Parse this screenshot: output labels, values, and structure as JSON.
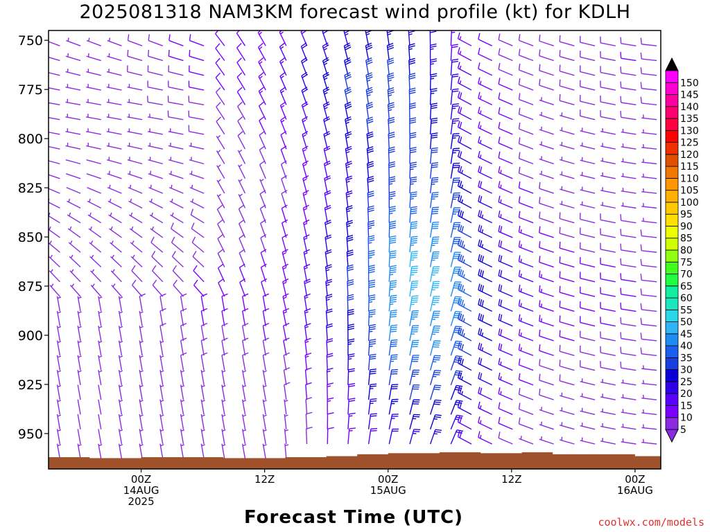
{
  "chart_data": {
    "type": "wind-barb time-height profile",
    "title": "2025081318 NAM3KM forecast wind profile (kt) for KDLH",
    "xlabel": "Forecast Time (UTC)",
    "ylabel": "",
    "y_axis": {
      "reversed": true,
      "range": [
        745,
        968
      ],
      "ticks": [
        750,
        775,
        800,
        825,
        850,
        875,
        900,
        925,
        950
      ]
    },
    "x_axis": {
      "range_hours": [
        -9,
        50.5
      ],
      "ticks": [
        {
          "hour": 0,
          "lines": [
            "00Z",
            "14AUG",
            "2025"
          ]
        },
        {
          "hour": 12,
          "lines": [
            "12Z"
          ]
        },
        {
          "hour": 24,
          "lines": [
            "00Z",
            "15AUG"
          ]
        },
        {
          "hour": 36,
          "lines": [
            "12Z"
          ]
        },
        {
          "hour": 48,
          "lines": [
            "00Z",
            "16AUG"
          ]
        }
      ]
    },
    "colorbar": {
      "unit": "kt",
      "levels": [
        5,
        10,
        15,
        20,
        25,
        30,
        35,
        40,
        45,
        50,
        55,
        60,
        65,
        70,
        75,
        80,
        85,
        90,
        95,
        100,
        105,
        110,
        115,
        120,
        125,
        130,
        135,
        140,
        145,
        150
      ],
      "colors": [
        "#8a2be2",
        "#7a00ff",
        "#5a00ff",
        "#3000e8",
        "#0a00d8",
        "#1a3de0",
        "#1a60f0",
        "#1e8cf5",
        "#2fb4f5",
        "#2ad7e8",
        "#1ae8c0",
        "#10f0a0",
        "#20ff40",
        "#40ff20",
        "#90ff10",
        "#d0ff00",
        "#f0ff00",
        "#ffe000",
        "#ffc800",
        "#ffb000",
        "#ff9600",
        "#f07800",
        "#e05000",
        "#f03000",
        "#ff0000",
        "#ff0040",
        "#ff0070",
        "#ff00a0",
        "#ff00d0",
        "#ff00ff"
      ],
      "arrow_top_color": "#000000",
      "arrow_bottom_color": "#8a2be2"
    },
    "terrain_color": "#a0522d",
    "surface_pressure": [
      {
        "hour": -9,
        "p": 962.0
      },
      {
        "hour": -5,
        "p": 962.5
      },
      {
        "hour": 0,
        "p": 962.0
      },
      {
        "hour": 8,
        "p": 962.5
      },
      {
        "hour": 14,
        "p": 962.0
      },
      {
        "hour": 18,
        "p": 961.5
      },
      {
        "hour": 21,
        "p": 960.5
      },
      {
        "hour": 24,
        "p": 960.0
      },
      {
        "hour": 29,
        "p": 959.5
      },
      {
        "hour": 33,
        "p": 960.0
      },
      {
        "hour": 37,
        "p": 959.5
      },
      {
        "hour": 40,
        "p": 960.5
      },
      {
        "hour": 45,
        "p": 960.5
      },
      {
        "hour": 48,
        "p": 961.5
      },
      {
        "hour": 50.5,
        "p": 962.0
      }
    ],
    "wind_core": {
      "hour": 26.5,
      "p": 875,
      "peak_kt": 45
    }
  },
  "watermark": "coolwx.com/models"
}
